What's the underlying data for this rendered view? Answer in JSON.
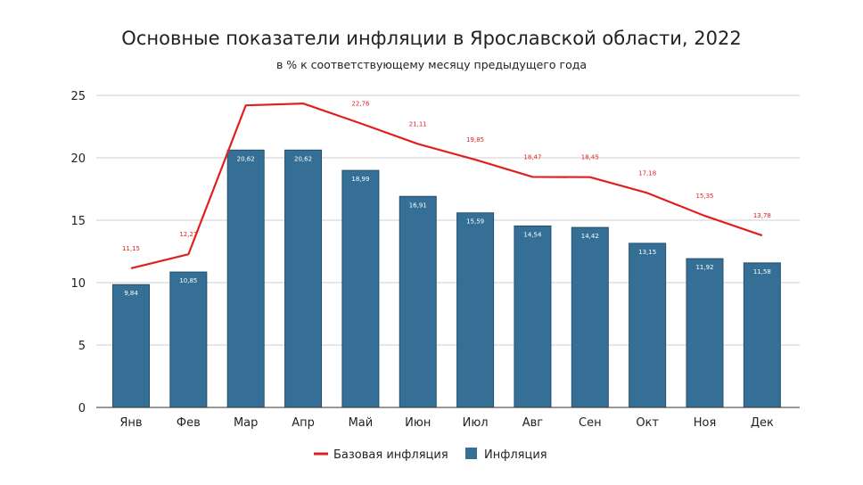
{
  "chart_data": {
    "type": "bar",
    "title": "Основные показатели инфляции в Ярославской области, 2022",
    "subtitle": "в % к соответствующему месяцу предыдущего года",
    "categories": [
      "Янв",
      "Фев",
      "Мар",
      "Апр",
      "Май",
      "Июн",
      "Июл",
      "Авг",
      "Сен",
      "Окт",
      "Ноя",
      "Дек"
    ],
    "ylim": [
      0,
      25
    ],
    "yticks": [
      "0",
      "5",
      "10",
      "15",
      "20",
      "25"
    ],
    "grid": true,
    "legend_placement": "bottom",
    "series": [
      {
        "name": "Базовая инфляция",
        "type": "line",
        "color": "#e02020",
        "values": [
          11.15,
          12.27,
          24.2,
          24.35,
          22.76,
          21.11,
          19.85,
          18.47,
          18.45,
          17.18,
          15.35,
          13.78
        ],
        "labels": [
          "11,15",
          "12,27",
          "",
          "",
          "22,76",
          "21,11",
          "19,85",
          "18,47",
          "18,45",
          "17,18",
          "15,35",
          "13,78"
        ]
      },
      {
        "name": "Инфляция",
        "type": "bar",
        "color": "#356f96",
        "values": [
          9.84,
          10.85,
          20.62,
          20.62,
          18.99,
          16.91,
          15.59,
          14.54,
          14.42,
          13.15,
          11.92,
          11.58
        ],
        "labels": [
          "9,84",
          "10,85",
          "20,62",
          "20,62",
          "18,99",
          "16,91",
          "15,59",
          "14,54",
          "14,42",
          "13,15",
          "11,92",
          "11,58"
        ]
      }
    ]
  }
}
